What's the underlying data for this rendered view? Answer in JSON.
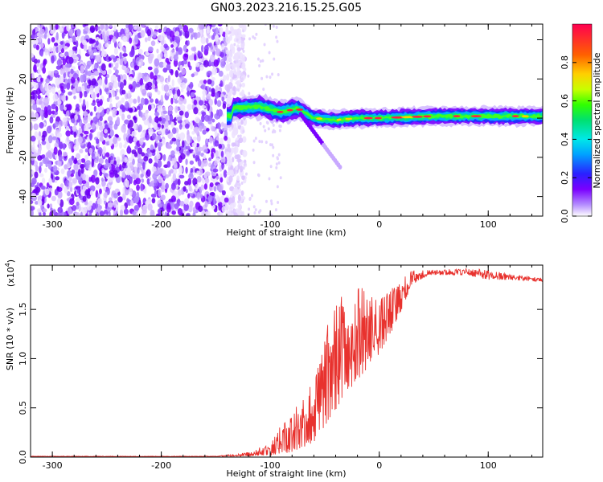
{
  "chart_data": [
    {
      "type": "heatmap",
      "title": "GN03.2023.216.15.25.G05",
      "xlabel": "Height of straight line (km)",
      "ylabel": "Frequency (Hz)",
      "xlim": [
        -320,
        150
      ],
      "ylim": [
        -50,
        48
      ],
      "xticks": [
        "-300",
        "-200",
        "-100",
        "0",
        "100"
      ],
      "yticks": [
        "-40",
        "-20",
        "0",
        "20",
        "40"
      ],
      "colorbar": {
        "label": "Normalized spectral amplitude",
        "range": [
          0,
          1
        ],
        "ticks": [
          "0.0",
          "0.2",
          "0.4",
          "0.6",
          "0.8"
        ],
        "colormap": "rainbow (purple to red)"
      },
      "description_data": {
        "noise_region_x": [
          -320,
          -135
        ],
        "ridge": [
          {
            "x": -135,
            "y": 5
          },
          {
            "x": -110,
            "y": 6
          },
          {
            "x": -90,
            "y": 3
          },
          {
            "x": -75,
            "y": 5
          },
          {
            "x": -60,
            "y": 0
          },
          {
            "x": -40,
            "y": -1
          },
          {
            "x": -20,
            "y": 0
          },
          {
            "x": 0,
            "y": 0
          },
          {
            "x": 50,
            "y": 1
          },
          {
            "x": 100,
            "y": 1
          },
          {
            "x": 150,
            "y": 1
          }
        ]
      },
      "colors": {
        "low": "#7a00ff",
        "high": "#ff0040"
      }
    },
    {
      "type": "line",
      "xlabel": "Height of straight line (km)",
      "ylabel": "SNR (10 * v/v)",
      "scale_label": "(x10",
      "scale_exp": "4",
      "xlim": [
        -320,
        150
      ],
      "ylim": [
        0,
        1.95
      ],
      "xticks": [
        "-300",
        "-200",
        "-100",
        "0",
        "100"
      ],
      "yticks": [
        "0.0",
        "0.5",
        "1.0",
        "1.5"
      ],
      "series_color": "#e8322e",
      "envelope": [
        {
          "x": -320,
          "low": 0.005,
          "high": 0.01
        },
        {
          "x": -150,
          "low": 0.005,
          "high": 0.01
        },
        {
          "x": -120,
          "low": 0.01,
          "high": 0.05
        },
        {
          "x": -100,
          "low": 0.02,
          "high": 0.15
        },
        {
          "x": -80,
          "low": 0.05,
          "high": 0.5
        },
        {
          "x": -60,
          "low": 0.15,
          "high": 0.8
        },
        {
          "x": -45,
          "low": 0.4,
          "high": 1.45
        },
        {
          "x": -30,
          "low": 0.65,
          "high": 1.75
        },
        {
          "x": -15,
          "low": 0.85,
          "high": 1.75
        },
        {
          "x": 0,
          "low": 1.05,
          "high": 1.6
        },
        {
          "x": 15,
          "low": 1.35,
          "high": 1.75
        },
        {
          "x": 30,
          "low": 1.75,
          "high": 1.9
        },
        {
          "x": 45,
          "low": 1.85,
          "high": 1.9
        },
        {
          "x": 80,
          "low": 1.85,
          "high": 1.92
        },
        {
          "x": 100,
          "low": 1.8,
          "high": 1.9
        },
        {
          "x": 120,
          "low": 1.8,
          "high": 1.86
        },
        {
          "x": 150,
          "low": 1.78,
          "high": 1.82
        }
      ]
    }
  ]
}
